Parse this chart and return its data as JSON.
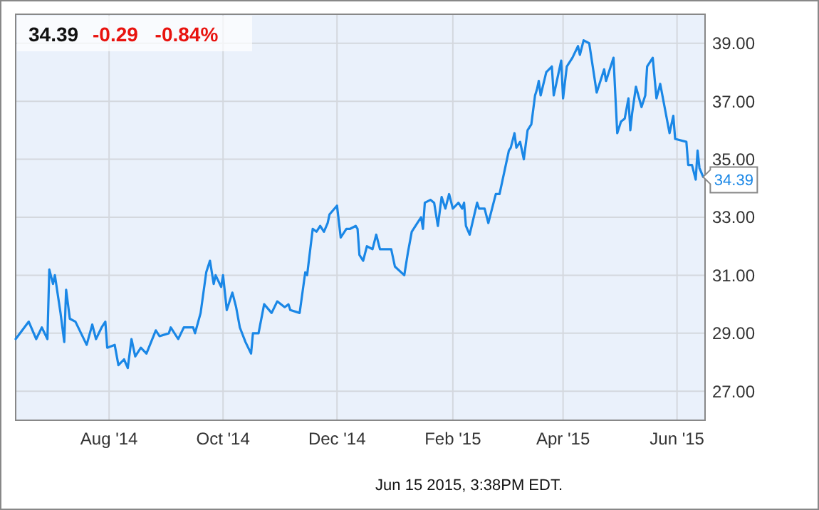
{
  "chart_data": {
    "type": "line",
    "title": "34.39",
    "subtitle": "-0.29 -0.84%",
    "annotations": [
      {
        "text": "34.39",
        "x": "2015-06-15",
        "y": 34.39
      },
      "Jun 15 2015, 3:38PM EDT."
    ],
    "x": [
      "2014-06-12",
      "2014-06-19",
      "2014-06-23",
      "2014-06-26",
      "2014-06-29",
      "2014-06-30",
      "2014-07-02",
      "2014-07-03",
      "2014-07-06",
      "2014-07-08",
      "2014-07-09",
      "2014-07-11",
      "2014-07-14",
      "2014-07-17",
      "2014-07-20",
      "2014-07-23",
      "2014-07-25",
      "2014-07-28",
      "2014-07-30",
      "2014-07-31",
      "2014-08-04",
      "2014-08-06",
      "2014-08-09",
      "2014-08-11",
      "2014-08-13",
      "2014-08-15",
      "2014-08-18",
      "2014-08-21",
      "2014-08-26",
      "2014-08-28",
      "2014-09-02",
      "2014-09-03",
      "2014-09-07",
      "2014-09-10",
      "2014-09-15",
      "2014-09-16",
      "2014-09-19",
      "2014-09-22",
      "2014-09-24",
      "2014-09-26",
      "2014-09-27",
      "2014-09-30",
      "2014-10-01",
      "2014-10-03",
      "2014-10-06",
      "2014-10-08",
      "2014-10-10",
      "2014-10-13",
      "2014-10-16",
      "2014-10-17",
      "2014-10-20",
      "2014-10-23",
      "2014-10-27",
      "2014-10-30",
      "2014-11-03",
      "2014-11-05",
      "2014-11-06",
      "2014-11-11",
      "2014-11-14",
      "2014-11-15",
      "2014-11-18",
      "2014-11-20",
      "2014-11-22",
      "2014-11-24",
      "2014-11-26",
      "2014-11-27",
      "2014-12-01",
      "2014-12-03",
      "2014-12-06",
      "2014-12-08",
      "2014-12-11",
      "2014-12-12",
      "2014-12-13",
      "2014-12-15",
      "2014-12-17",
      "2014-12-20",
      "2014-12-22",
      "2014-12-24",
      "2014-12-30",
      "2015-01-01",
      "2015-01-06",
      "2015-01-08",
      "2015-01-10",
      "2015-01-13",
      "2015-01-15",
      "2015-01-16",
      "2015-01-17",
      "2015-01-20",
      "2015-01-22",
      "2015-01-24",
      "2015-01-26",
      "2015-01-28",
      "2015-01-30",
      "2015-02-01",
      "2015-02-04",
      "2015-02-06",
      "2015-02-07",
      "2015-02-08",
      "2015-02-10",
      "2015-02-14",
      "2015-02-15",
      "2015-02-18",
      "2015-02-20",
      "2015-02-24",
      "2015-02-26",
      "2015-03-03",
      "2015-03-04",
      "2015-03-06",
      "2015-03-07",
      "2015-03-09",
      "2015-03-11",
      "2015-03-13",
      "2015-03-15",
      "2015-03-17",
      "2015-03-18",
      "2015-03-19",
      "2015-03-20",
      "2015-03-23",
      "2015-03-26",
      "2015-03-27",
      "2015-03-29",
      "2015-03-31",
      "2015-04-01",
      "2015-04-03",
      "2015-04-06",
      "2015-04-09",
      "2015-04-10",
      "2015-04-12",
      "2015-04-15",
      "2015-04-19",
      "2015-04-23",
      "2015-04-24",
      "2015-04-28",
      "2015-04-30",
      "2015-05-02",
      "2015-05-04",
      "2015-05-06",
      "2015-05-07",
      "2015-05-08",
      "2015-05-10",
      "2015-05-13",
      "2015-05-15",
      "2015-05-16",
      "2015-05-19",
      "2015-05-21",
      "2015-05-23",
      "2015-05-28",
      "2015-05-30",
      "2015-05-31",
      "2015-06-06",
      "2015-06-07",
      "2015-06-09",
      "2015-06-11",
      "2015-06-12",
      "2015-06-13",
      "2015-06-15"
    ],
    "series": [
      {
        "color": "#1a87e6",
        "values": [
          28.8,
          29.4,
          28.8,
          29.2,
          28.8,
          31.2,
          30.7,
          31.0,
          29.7,
          28.7,
          30.5,
          29.5,
          29.4,
          29.0,
          28.6,
          29.3,
          28.8,
          29.2,
          29.4,
          28.5,
          28.6,
          27.9,
          28.1,
          27.8,
          28.8,
          28.2,
          28.5,
          28.3,
          29.1,
          28.9,
          29.0,
          29.2,
          28.8,
          29.2,
          29.2,
          29.0,
          29.7,
          31.1,
          31.5,
          30.7,
          31.0,
          30.6,
          31.0,
          29.8,
          30.4,
          29.9,
          29.2,
          28.7,
          28.3,
          29.0,
          29.0,
          30.0,
          29.7,
          30.1,
          29.9,
          30.0,
          29.8,
          29.7,
          31.1,
          31.0,
          32.6,
          32.5,
          32.7,
          32.5,
          32.8,
          33.1,
          33.4,
          32.3,
          32.6,
          32.6,
          32.7,
          32.6,
          31.7,
          31.5,
          32.0,
          31.9,
          32.4,
          31.9,
          31.9,
          31.3,
          31.0,
          31.8,
          32.5,
          32.8,
          33.0,
          32.6,
          33.5,
          33.6,
          33.5,
          32.7,
          33.7,
          33.3,
          33.8,
          33.3,
          33.5,
          33.3,
          33.5,
          32.7,
          32.4,
          33.5,
          33.3,
          33.3,
          32.8,
          33.8,
          33.8,
          35.3,
          35.4,
          35.9,
          35.4,
          35.6,
          35.0,
          36.0,
          36.2,
          37.2,
          37.4,
          37.7,
          37.2,
          38.0,
          38.2,
          37.2,
          37.8,
          38.4,
          37.1,
          38.2,
          38.5,
          38.9,
          38.6,
          39.1,
          39.0,
          37.3,
          38.1,
          37.7,
          38.5,
          35.9,
          36.3,
          36.4,
          37.1,
          36.0,
          36.6,
          37.5,
          36.8,
          37.2,
          38.2,
          38.5,
          37.1,
          37.6,
          35.9,
          36.5,
          35.7,
          35.6,
          34.8,
          34.8,
          34.3,
          35.3,
          34.7,
          34.39
        ]
      }
    ],
    "xlim": [
      "2014-06-12",
      "2015-06-16"
    ],
    "xticks": [
      {
        "value": "2014-08-01",
        "label": "Aug '14"
      },
      {
        "value": "2014-10-01",
        "label": "Oct '14"
      },
      {
        "value": "2014-12-01",
        "label": "Dec '14"
      },
      {
        "value": "2015-02-01",
        "label": "Feb '15"
      },
      {
        "value": "2015-04-01",
        "label": "Apr '15"
      },
      {
        "value": "2015-06-01",
        "label": "Jun '15"
      }
    ],
    "ylim": [
      26,
      40
    ],
    "yticks": [
      {
        "value": 27,
        "label": "27.00"
      },
      {
        "value": 29,
        "label": "29.00"
      },
      {
        "value": 31,
        "label": "31.00"
      },
      {
        "value": 33,
        "label": "33.00"
      },
      {
        "value": 35,
        "label": "35.00"
      },
      {
        "value": 37,
        "label": "37.00"
      },
      {
        "value": 39,
        "label": "39.00"
      }
    ],
    "grid": true,
    "marker": "none",
    "line_style": "solid"
  }
}
